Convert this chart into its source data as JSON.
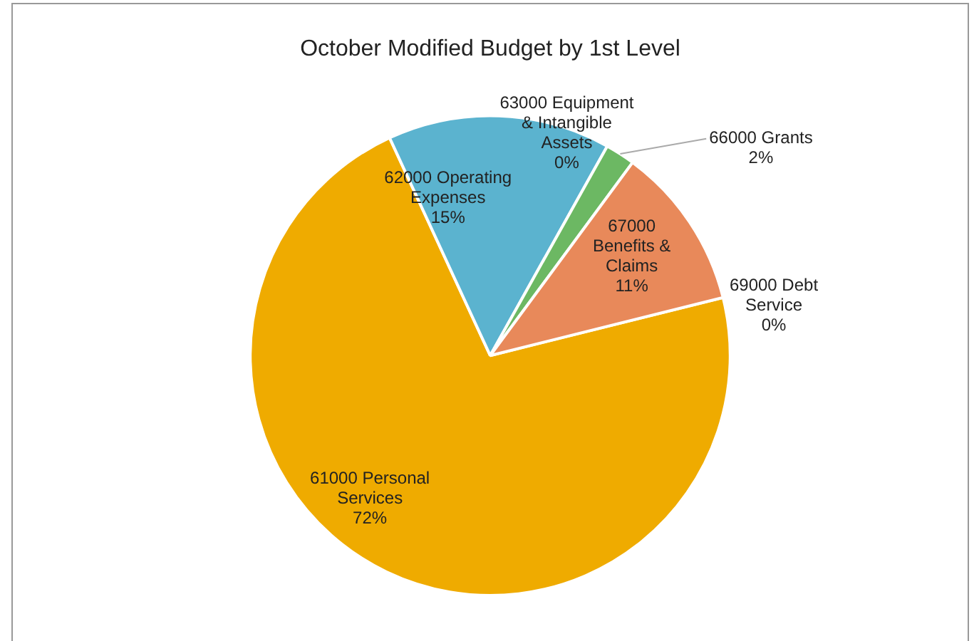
{
  "chart_data": {
    "type": "pie",
    "title": "October Modified Budget by 1st Level",
    "categories": [
      "61000 Personal Services",
      "62000 Operating Expenses",
      "63000 Equipment & Intangible Assets",
      "66000 Grants",
      "67000 Benefits & Claims",
      "69000 Debt Service"
    ],
    "values": [
      72,
      15,
      0,
      2,
      11,
      0
    ],
    "colors": [
      "#efab00",
      "#5bb3cf",
      "#4a7ebb",
      "#6cb863",
      "#e8895a",
      "#8c8c8c"
    ],
    "value_labels": [
      "72%",
      "15%",
      "0%",
      "2%",
      "11%",
      "0%"
    ],
    "legend": false
  }
}
